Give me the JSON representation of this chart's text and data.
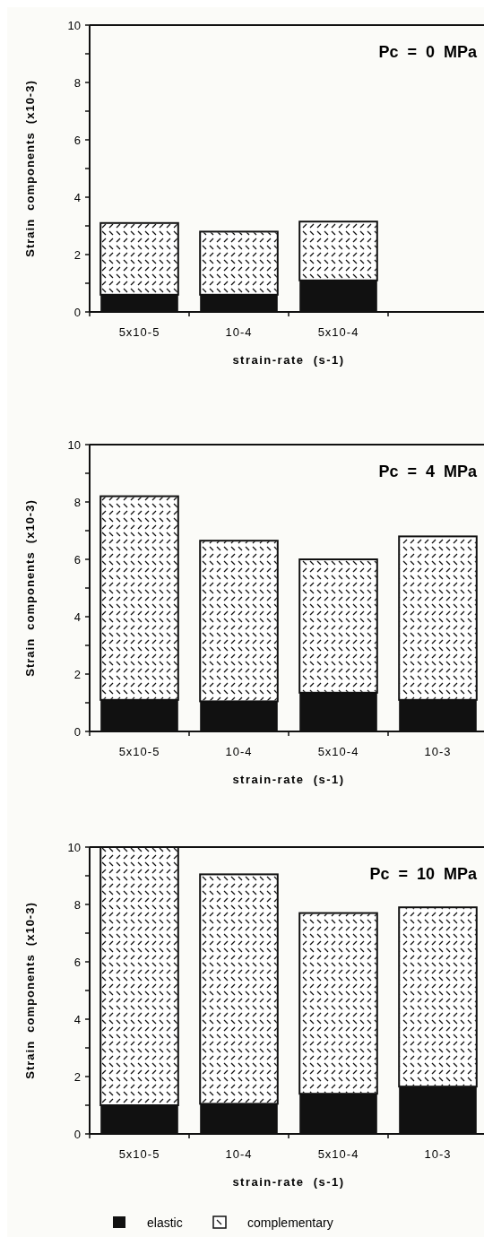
{
  "chart_data": [
    {
      "type": "bar",
      "stacked": true,
      "title": "Pc = 0 MPa",
      "xlabel": "strain-rate  (s-1)",
      "ylabel": "Strain  components  (x10-3)",
      "categories": [
        "5x10-5",
        "10-4",
        "5x10-4",
        null
      ],
      "ylim": [
        0,
        10
      ],
      "yticks": [
        0,
        {
          "value": 1,
          "label": null
        },
        2,
        {
          "value": 3,
          "label": null
        },
        4,
        {
          "value": 5,
          "label": null
        },
        6,
        {
          "value": 7,
          "label": null
        },
        8,
        {
          "value": 9,
          "label": null
        },
        10
      ],
      "series": [
        {
          "color": "#111111",
          "values": [
            0.6,
            0.6,
            1.1,
            null
          ]
        },
        {
          "color": "#ffffff",
          "values": [
            2.5,
            2.2,
            2.05,
            null
          ]
        }
      ]
    },
    {
      "type": "bar",
      "stacked": true,
      "title": "Pc = 4 MPa",
      "xlabel": "strain-rate  (s-1)",
      "ylabel": "Strain  components  (x10-3)",
      "categories": [
        "5x10-5",
        "10-4",
        "5x10-4",
        "10-3"
      ],
      "ylim": [
        0,
        10
      ],
      "yticks": [
        0,
        {
          "value": 1,
          "label": null
        },
        2,
        {
          "value": 3,
          "label": null
        },
        4,
        {
          "value": 5,
          "label": null
        },
        6,
        {
          "value": 7,
          "label": null
        },
        8,
        {
          "value": 9,
          "label": null
        },
        10
      ],
      "series": [
        {
          "color": "#111111",
          "values": [
            1.1,
            1.05,
            1.35,
            1.1
          ]
        },
        {
          "color": "#ffffff",
          "values": [
            7.1,
            5.6,
            4.65,
            5.7
          ]
        }
      ]
    },
    {
      "type": "bar",
      "stacked": true,
      "title": "Pc = 10 MPa",
      "xlabel": "strain-rate  (s-1)",
      "ylabel": "Strain  components  (x10-3)",
      "categories": [
        "5x10-5",
        "10-4",
        "5x10-4",
        "10-3"
      ],
      "ylim": [
        0,
        10
      ],
      "yticks": [
        0,
        {
          "value": 1,
          "label": null
        },
        2,
        {
          "value": 3,
          "label": null
        },
        4,
        {
          "value": 5,
          "label": null
        },
        6,
        {
          "value": 7,
          "label": null
        },
        8,
        {
          "value": 9,
          "label": null
        },
        10
      ],
      "legend": "bottom",
      "series": [
        {
          "name": "elastic",
          "color": "#111111",
          "values": [
            1.0,
            1.05,
            1.4,
            1.65
          ]
        },
        {
          "name": "complementary",
          "color": "#ffffff",
          "values": [
            9.0,
            8.0,
            6.3,
            6.25
          ]
        }
      ]
    }
  ]
}
